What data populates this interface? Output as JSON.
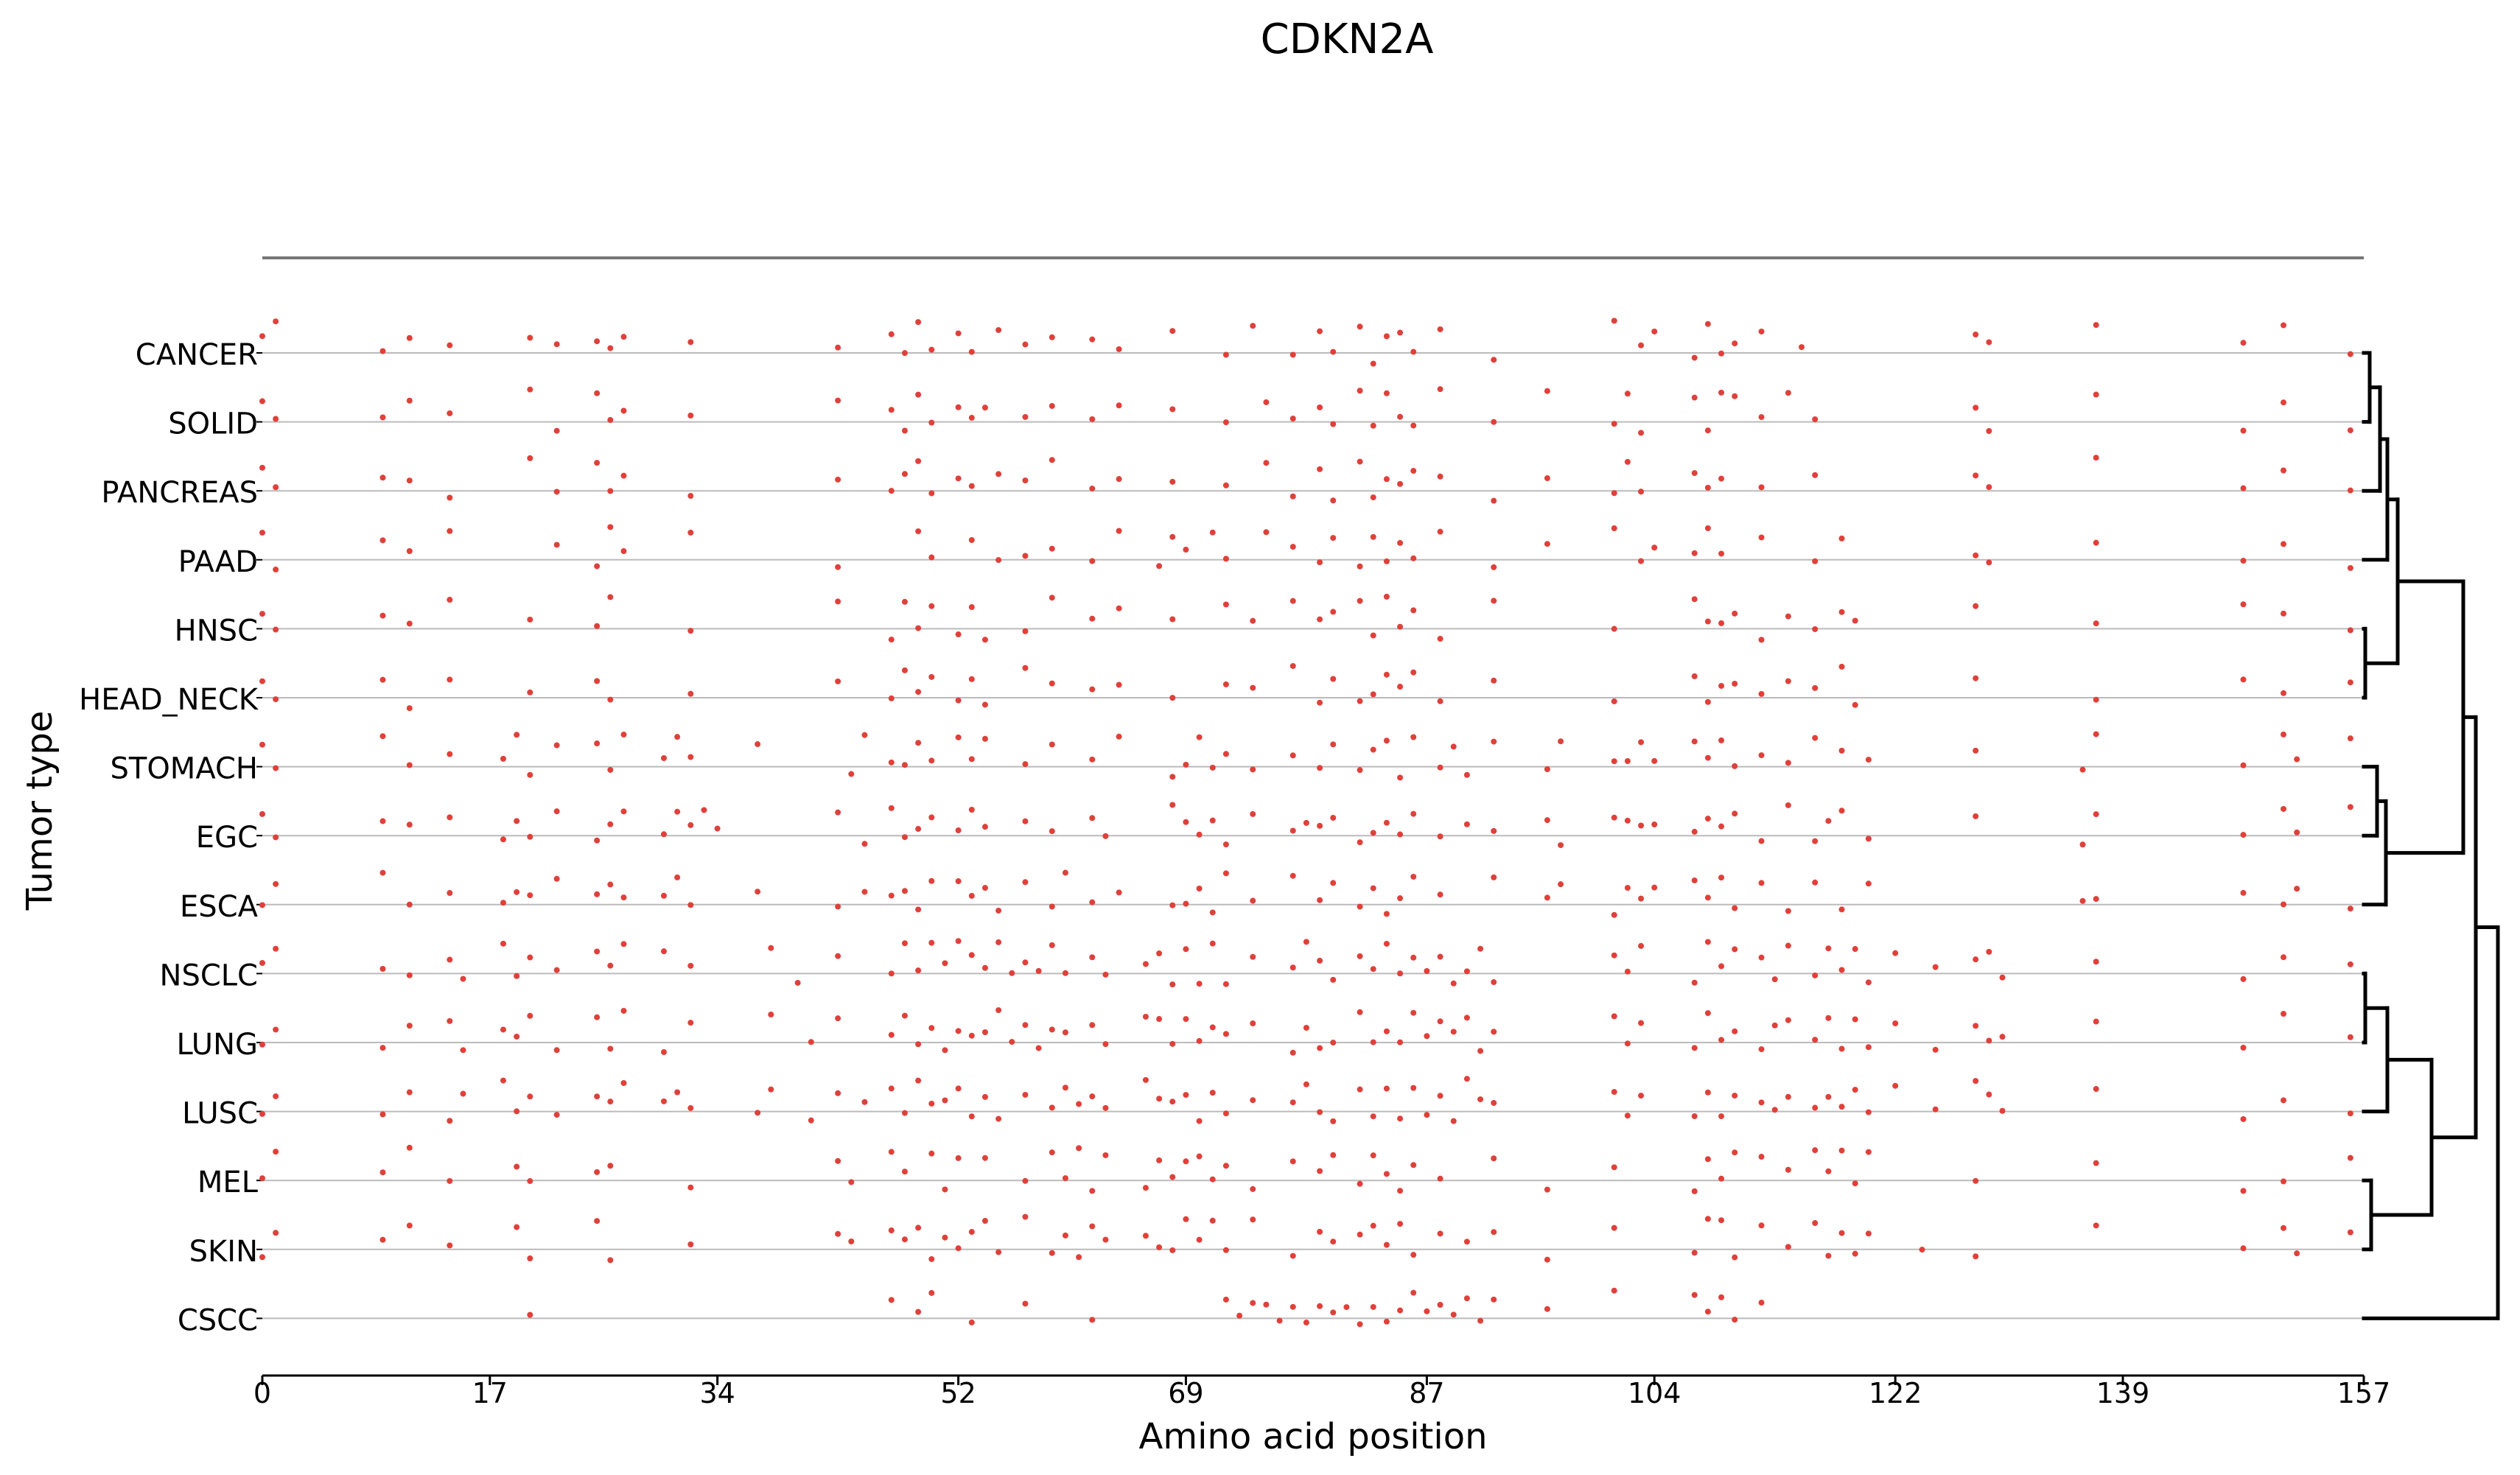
{
  "chart_data": {
    "type": "scatter",
    "title": "CDKN2A",
    "xlabel": "Amino acid position",
    "ylabel": "Tumor type",
    "xlim": [
      0,
      157
    ],
    "xticks": [
      0,
      17,
      34,
      52,
      69,
      87,
      104,
      122,
      139,
      157
    ],
    "categories": [
      "CANCER",
      "SOLID",
      "PANCREAS",
      "PAAD",
      "HNSC",
      "HEAD_NECK",
      "STOMACH",
      "EGC",
      "ESCA",
      "NSCLC",
      "LUNG",
      "LUSC",
      "MEL",
      "SKIN",
      "CSCC"
    ],
    "mutation_color": "#e0403a",
    "guide_color": "#bbbbbb",
    "series": [
      {
        "name": "CANCER",
        "x": [
          0,
          1,
          9,
          11,
          14,
          20,
          22,
          25,
          26,
          27,
          32,
          43,
          47,
          48,
          49,
          50,
          52,
          53,
          55,
          57,
          59,
          62,
          64,
          68,
          72,
          74,
          77,
          79,
          80,
          82,
          83,
          84,
          85,
          86,
          88,
          92,
          101,
          103,
          104,
          107,
          108,
          109,
          110,
          112,
          115,
          128,
          129,
          137,
          148,
          151,
          156
        ]
      },
      {
        "name": "SOLID",
        "x": [
          0,
          1,
          9,
          11,
          14,
          20,
          22,
          25,
          26,
          27,
          32,
          43,
          47,
          48,
          49,
          50,
          52,
          53,
          54,
          57,
          59,
          62,
          64,
          68,
          72,
          75,
          77,
          79,
          80,
          82,
          83,
          84,
          85,
          86,
          88,
          92,
          96,
          101,
          102,
          103,
          107,
          108,
          109,
          110,
          112,
          114,
          116,
          128,
          129,
          137,
          148,
          151,
          156
        ]
      },
      {
        "name": "PANCREAS",
        "x": [
          0,
          1,
          9,
          11,
          14,
          20,
          22,
          25,
          26,
          27,
          32,
          43,
          47,
          48,
          49,
          50,
          52,
          53,
          55,
          57,
          59,
          62,
          64,
          68,
          72,
          75,
          77,
          79,
          80,
          82,
          83,
          84,
          85,
          86,
          88,
          92,
          96,
          101,
          102,
          103,
          107,
          108,
          109,
          112,
          116,
          128,
          129,
          137,
          148,
          151,
          156
        ]
      },
      {
        "name": "PAAD",
        "x": [
          0,
          1,
          9,
          11,
          14,
          22,
          25,
          26,
          27,
          32,
          43,
          49,
          50,
          53,
          55,
          57,
          59,
          62,
          64,
          67,
          68,
          69,
          71,
          72,
          75,
          77,
          79,
          80,
          82,
          83,
          84,
          85,
          86,
          88,
          92,
          96,
          101,
          103,
          104,
          107,
          108,
          109,
          112,
          116,
          118,
          128,
          129,
          137,
          148,
          151,
          156
        ]
      },
      {
        "name": "HNSC",
        "x": [
          0,
          1,
          9,
          11,
          14,
          20,
          25,
          26,
          32,
          43,
          47,
          48,
          49,
          50,
          52,
          53,
          54,
          57,
          59,
          62,
          64,
          68,
          72,
          74,
          77,
          79,
          80,
          82,
          83,
          84,
          85,
          86,
          88,
          92,
          101,
          107,
          108,
          109,
          110,
          112,
          114,
          116,
          118,
          119,
          128,
          137,
          148,
          151,
          156
        ]
      },
      {
        "name": "HEAD_NECK",
        "x": [
          0,
          1,
          9,
          11,
          14,
          20,
          25,
          26,
          32,
          43,
          47,
          48,
          49,
          50,
          52,
          53,
          54,
          57,
          59,
          62,
          64,
          68,
          72,
          74,
          77,
          79,
          80,
          82,
          83,
          84,
          85,
          86,
          88,
          92,
          101,
          107,
          108,
          109,
          110,
          112,
          114,
          116,
          118,
          119,
          128,
          137,
          148,
          151,
          156
        ]
      },
      {
        "name": "STOMACH",
        "x": [
          0,
          1,
          9,
          11,
          14,
          18,
          19,
          20,
          22,
          25,
          26,
          27,
          30,
          31,
          32,
          37,
          44,
          45,
          47,
          48,
          49,
          50,
          52,
          53,
          54,
          57,
          59,
          62,
          64,
          68,
          69,
          70,
          71,
          72,
          74,
          77,
          79,
          80,
          82,
          83,
          84,
          85,
          86,
          88,
          89,
          90,
          92,
          96,
          97,
          101,
          102,
          103,
          104,
          107,
          108,
          109,
          110,
          112,
          114,
          116,
          118,
          120,
          128,
          136,
          137,
          148,
          151,
          152,
          156
        ]
      },
      {
        "name": "EGC",
        "x": [
          0,
          1,
          9,
          11,
          14,
          18,
          19,
          20,
          22,
          25,
          26,
          27,
          30,
          31,
          32,
          33,
          34,
          43,
          45,
          47,
          48,
          49,
          50,
          52,
          53,
          54,
          57,
          59,
          62,
          63,
          68,
          69,
          70,
          71,
          72,
          74,
          77,
          78,
          79,
          80,
          82,
          83,
          84,
          85,
          86,
          88,
          90,
          92,
          96,
          97,
          101,
          102,
          103,
          104,
          107,
          108,
          109,
          110,
          112,
          114,
          116,
          117,
          118,
          120,
          128,
          136,
          137,
          148,
          151,
          152,
          156
        ]
      },
      {
        "name": "ESCA",
        "x": [
          0,
          1,
          9,
          11,
          14,
          18,
          19,
          20,
          22,
          25,
          26,
          27,
          30,
          31,
          32,
          37,
          43,
          45,
          47,
          48,
          49,
          50,
          52,
          53,
          54,
          55,
          57,
          59,
          60,
          62,
          64,
          68,
          69,
          70,
          71,
          72,
          74,
          77,
          79,
          80,
          82,
          83,
          84,
          85,
          86,
          88,
          92,
          96,
          97,
          101,
          102,
          103,
          104,
          107,
          108,
          109,
          110,
          112,
          114,
          116,
          118,
          120,
          136,
          137,
          148,
          151,
          152,
          156
        ]
      },
      {
        "name": "NSCLC",
        "x": [
          0,
          1,
          9,
          11,
          14,
          15,
          18,
          19,
          20,
          22,
          25,
          26,
          27,
          30,
          32,
          38,
          40,
          43,
          47,
          48,
          49,
          50,
          51,
          52,
          53,
          54,
          55,
          56,
          57,
          58,
          59,
          60,
          62,
          63,
          66,
          67,
          68,
          69,
          70,
          71,
          72,
          74,
          77,
          78,
          79,
          80,
          82,
          83,
          84,
          85,
          86,
          87,
          88,
          89,
          90,
          91,
          92,
          101,
          102,
          103,
          107,
          108,
          109,
          110,
          112,
          113,
          114,
          116,
          117,
          118,
          119,
          120,
          122,
          125,
          128,
          129,
          130,
          137,
          148,
          151,
          156
        ]
      },
      {
        "name": "LUNG",
        "x": [
          0,
          1,
          9,
          11,
          14,
          15,
          18,
          19,
          20,
          22,
          25,
          26,
          27,
          30,
          32,
          38,
          41,
          43,
          47,
          48,
          49,
          50,
          51,
          52,
          53,
          54,
          55,
          56,
          57,
          58,
          59,
          60,
          62,
          63,
          66,
          67,
          68,
          69,
          70,
          71,
          72,
          74,
          77,
          78,
          79,
          80,
          82,
          83,
          84,
          85,
          86,
          87,
          88,
          89,
          90,
          91,
          92,
          101,
          102,
          103,
          107,
          108,
          109,
          110,
          112,
          113,
          114,
          116,
          117,
          118,
          119,
          120,
          122,
          125,
          128,
          129,
          130,
          137,
          148,
          151,
          156
        ]
      },
      {
        "name": "LUSC",
        "x": [
          0,
          1,
          9,
          11,
          14,
          15,
          18,
          19,
          20,
          22,
          25,
          26,
          27,
          30,
          31,
          32,
          37,
          38,
          41,
          43,
          45,
          47,
          48,
          49,
          50,
          51,
          52,
          53,
          54,
          55,
          57,
          59,
          60,
          61,
          62,
          63,
          66,
          67,
          68,
          69,
          70,
          71,
          72,
          74,
          77,
          78,
          79,
          80,
          82,
          83,
          84,
          85,
          86,
          87,
          88,
          89,
          90,
          91,
          92,
          101,
          102,
          103,
          107,
          108,
          109,
          110,
          112,
          113,
          114,
          116,
          117,
          118,
          119,
          120,
          122,
          125,
          128,
          129,
          130,
          137,
          148,
          151,
          156
        ]
      },
      {
        "name": "MEL",
        "x": [
          0,
          1,
          9,
          11,
          14,
          19,
          20,
          25,
          26,
          32,
          43,
          44,
          47,
          48,
          50,
          51,
          52,
          54,
          57,
          59,
          60,
          61,
          62,
          63,
          66,
          67,
          68,
          69,
          70,
          71,
          72,
          74,
          77,
          79,
          80,
          82,
          83,
          84,
          85,
          86,
          88,
          92,
          96,
          101,
          107,
          108,
          109,
          110,
          112,
          114,
          116,
          117,
          118,
          119,
          120,
          128,
          137,
          148,
          151,
          156
        ]
      },
      {
        "name": "SKIN",
        "x": [
          0,
          1,
          9,
          11,
          14,
          19,
          20,
          25,
          26,
          32,
          43,
          44,
          47,
          48,
          49,
          50,
          51,
          52,
          53,
          54,
          55,
          57,
          59,
          60,
          61,
          62,
          63,
          66,
          67,
          68,
          69,
          70,
          71,
          72,
          74,
          77,
          79,
          80,
          82,
          83,
          84,
          85,
          86,
          88,
          90,
          92,
          96,
          101,
          107,
          108,
          109,
          110,
          112,
          114,
          116,
          117,
          118,
          119,
          120,
          124,
          128,
          137,
          148,
          151,
          152,
          156
        ]
      },
      {
        "name": "CSCC",
        "x": [
          20,
          47,
          49,
          50,
          53,
          57,
          62,
          72,
          73,
          74,
          75,
          76,
          77,
          78,
          79,
          80,
          81,
          82,
          83,
          84,
          85,
          86,
          87,
          88,
          89,
          90,
          91,
          92,
          96,
          101,
          107,
          108,
          109,
          110,
          112
        ]
      }
    ]
  }
}
